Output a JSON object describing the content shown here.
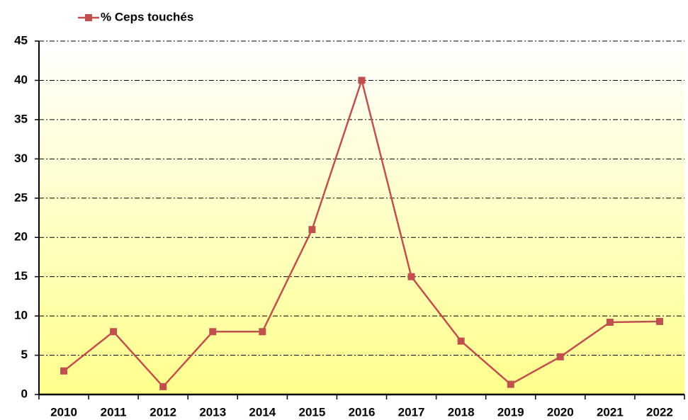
{
  "chart_data": {
    "type": "line",
    "categories": [
      "2010",
      "2011",
      "2012",
      "2013",
      "2014",
      "2015",
      "2016",
      "2017",
      "2018",
      "2019",
      "2020",
      "2021",
      "2022"
    ],
    "series": [
      {
        "name": "% Ceps touchés",
        "color": "#c0504d",
        "values": [
          3,
          8,
          1,
          8,
          8,
          21,
          40,
          15,
          6.8,
          1.3,
          4.8,
          9.2,
          9.3
        ]
      }
    ],
    "ylim": [
      0,
      45
    ],
    "yticks": [
      0,
      5,
      10,
      15,
      20,
      25,
      30,
      35,
      40,
      45
    ],
    "grid": true,
    "legend": "top-left"
  }
}
